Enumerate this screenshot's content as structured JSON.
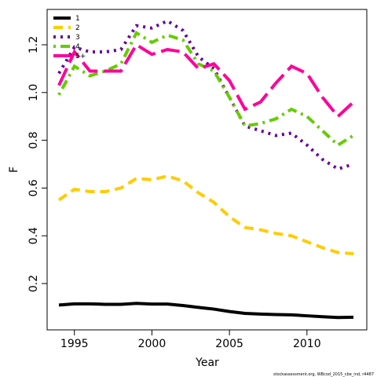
{
  "chart_data": {
    "type": "line",
    "x_label": "Year",
    "y_label": "F",
    "footnote": "stockassessment.org, WBcod_2015_cbe_ind, r4487",
    "x": [
      1994,
      1995,
      1996,
      1997,
      1998,
      1999,
      2000,
      2001,
      2002,
      2003,
      2004,
      2005,
      2006,
      2007,
      2008,
      2009,
      2010,
      2011,
      2012,
      2013
    ],
    "series": [
      {
        "name": "1",
        "color": "#000000",
        "values": [
          0.11,
          0.115,
          0.115,
          0.113,
          0.113,
          0.117,
          0.114,
          0.114,
          0.108,
          0.1,
          0.093,
          0.083,
          0.075,
          0.072,
          0.07,
          0.069,
          0.065,
          0.061,
          0.058,
          0.059
        ]
      },
      {
        "name": "2",
        "color": "#ffcc00",
        "values": [
          0.55,
          0.595,
          0.585,
          0.585,
          0.6,
          0.64,
          0.635,
          0.65,
          0.63,
          0.58,
          0.54,
          0.48,
          0.435,
          0.425,
          0.41,
          0.4,
          0.375,
          0.35,
          0.33,
          0.325
        ]
      },
      {
        "name": "3",
        "color": "#660099",
        "values": [
          1.08,
          1.19,
          1.17,
          1.17,
          1.18,
          1.28,
          1.27,
          1.3,
          1.26,
          1.15,
          1.1,
          0.98,
          0.86,
          0.84,
          0.82,
          0.83,
          0.78,
          0.72,
          0.68,
          0.7
        ]
      },
      {
        "name": "4",
        "color": "#66cc00",
        "values": [
          0.99,
          1.11,
          1.07,
          1.09,
          1.12,
          1.25,
          1.21,
          1.24,
          1.22,
          1.12,
          1.09,
          0.98,
          0.86,
          0.87,
          0.89,
          0.93,
          0.9,
          0.84,
          0.78,
          0.82
        ]
      },
      {
        "name": "5+",
        "color": "#ff0099",
        "values": [
          1.03,
          1.17,
          1.09,
          1.09,
          1.09,
          1.2,
          1.16,
          1.18,
          1.17,
          1.1,
          1.12,
          1.05,
          0.93,
          0.96,
          1.04,
          1.11,
          1.08,
          0.98,
          0.9,
          0.96
        ]
      }
    ],
    "xlim": [
      1993.24,
      2013.86
    ],
    "xticks": [
      1995,
      2000,
      2005,
      2010
    ],
    "ylim": [
      0.006,
      1.348
    ],
    "yticks": [
      0.2,
      0.4,
      0.6,
      0.8,
      {
        "value": 1,
        "label": "1.0"
      },
      1.2
    ],
    "legend": "top-left"
  }
}
